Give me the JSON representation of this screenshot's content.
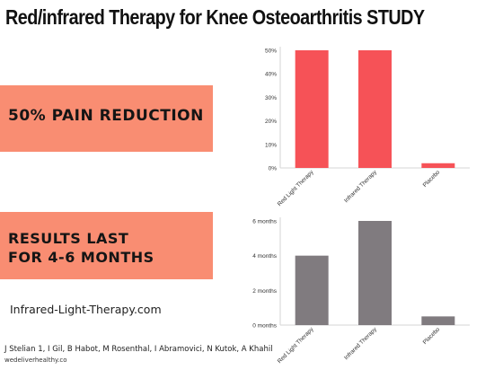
{
  "title": "Red/infrared Therapy for Knee Osteoarthritis STUDY",
  "banners": {
    "pain": "50% PAIN REDUCTION",
    "results_line1": "RESULTS LAST",
    "results_line2": "FOR 4-6 MONTHS"
  },
  "footer": {
    "site": "Infrared-Light-Therapy.com",
    "authors": "J Stelian 1, I Gil, B Habot, M Rosenthal, I Abramovici, N Kutok, A Khahil",
    "domain": "wedeliverhealthy.co"
  },
  "colors": {
    "banner": "#f98d72",
    "chart1": "#f65257",
    "chart2": "#807b7f"
  },
  "chart_data": [
    {
      "type": "bar",
      "title": "",
      "xlabel": "",
      "ylabel": "",
      "categories": [
        "Red Light Therapy",
        "Infrared Therapy",
        "Placebo"
      ],
      "values": [
        50,
        50,
        2
      ],
      "ylim": [
        0,
        50
      ],
      "yticks": [
        0,
        10,
        20,
        30,
        40,
        50
      ],
      "ytick_labels": [
        "0%",
        "10%",
        "20%",
        "30%",
        "40%",
        "50%"
      ],
      "grid": false,
      "legend": "none"
    },
    {
      "type": "bar",
      "title": "",
      "xlabel": "",
      "ylabel": "",
      "categories": [
        "Red Light Therapy",
        "Infrared Therapy",
        "Placebo"
      ],
      "values": [
        4,
        6,
        0.5
      ],
      "ylim": [
        0,
        6
      ],
      "yticks": [
        0,
        2,
        4,
        6
      ],
      "ytick_labels": [
        "0 months",
        "2 months",
        "4 months",
        "6 months"
      ],
      "grid": false,
      "legend": "none"
    }
  ]
}
